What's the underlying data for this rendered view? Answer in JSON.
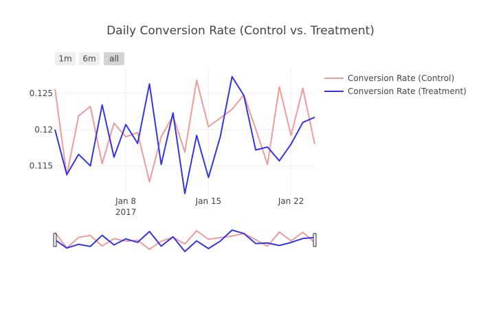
{
  "chart_data": {
    "type": "line",
    "title": "Daily Conversion Rate (Control vs. Treatment)",
    "xlabel": "",
    "ylabel": "",
    "x": [
      "2017-01-02",
      "2017-01-03",
      "2017-01-04",
      "2017-01-05",
      "2017-01-06",
      "2017-01-07",
      "2017-01-08",
      "2017-01-09",
      "2017-01-10",
      "2017-01-11",
      "2017-01-12",
      "2017-01-13",
      "2017-01-14",
      "2017-01-15",
      "2017-01-16",
      "2017-01-17",
      "2017-01-18",
      "2017-01-19",
      "2017-01-20",
      "2017-01-21",
      "2017-01-22",
      "2017-01-23",
      "2017-01-24"
    ],
    "x_tick_labels": [
      {
        "date": "2017-01-08",
        "label": "Jan 8",
        "sub": "2017"
      },
      {
        "date": "2017-01-15",
        "label": "Jan 15",
        "sub": ""
      },
      {
        "date": "2017-01-22",
        "label": "Jan 22",
        "sub": ""
      }
    ],
    "y_ticks": [
      0.115,
      0.12,
      0.125
    ],
    "y_tick_labels": [
      "0.115",
      "0.12",
      "0.125"
    ],
    "ylim": [
      0.1108,
      0.1284
    ],
    "grid": true,
    "legend_position": "top-right",
    "series": [
      {
        "name": "Conversion Rate (Control)",
        "color": "#ef9a9a",
        "values": [
          0.1256,
          0.1137,
          0.1219,
          0.1232,
          0.1153,
          0.1209,
          0.119,
          0.1196,
          0.1128,
          0.119,
          0.1219,
          0.1169,
          0.1268,
          0.1204,
          0.1216,
          0.1228,
          0.1248,
          0.1201,
          0.1152,
          0.1259,
          0.1192,
          0.1257,
          0.118
        ]
      },
      {
        "name": "Conversion Rate (Treatment)",
        "color": "#3232e6",
        "values": [
          0.12,
          0.1138,
          0.1166,
          0.115,
          0.1234,
          0.1162,
          0.1207,
          0.1181,
          0.1263,
          0.1152,
          0.1223,
          0.1112,
          0.1192,
          0.1134,
          0.119,
          0.1273,
          0.1247,
          0.1172,
          0.1176,
          0.1157,
          0.118,
          0.121,
          0.1217
        ]
      }
    ]
  },
  "range_selector": {
    "buttons": [
      {
        "label": "1m",
        "active": false
      },
      {
        "label": "6m",
        "active": false
      },
      {
        "label": "all",
        "active": true
      }
    ]
  },
  "range_slider": {
    "visible": true
  }
}
